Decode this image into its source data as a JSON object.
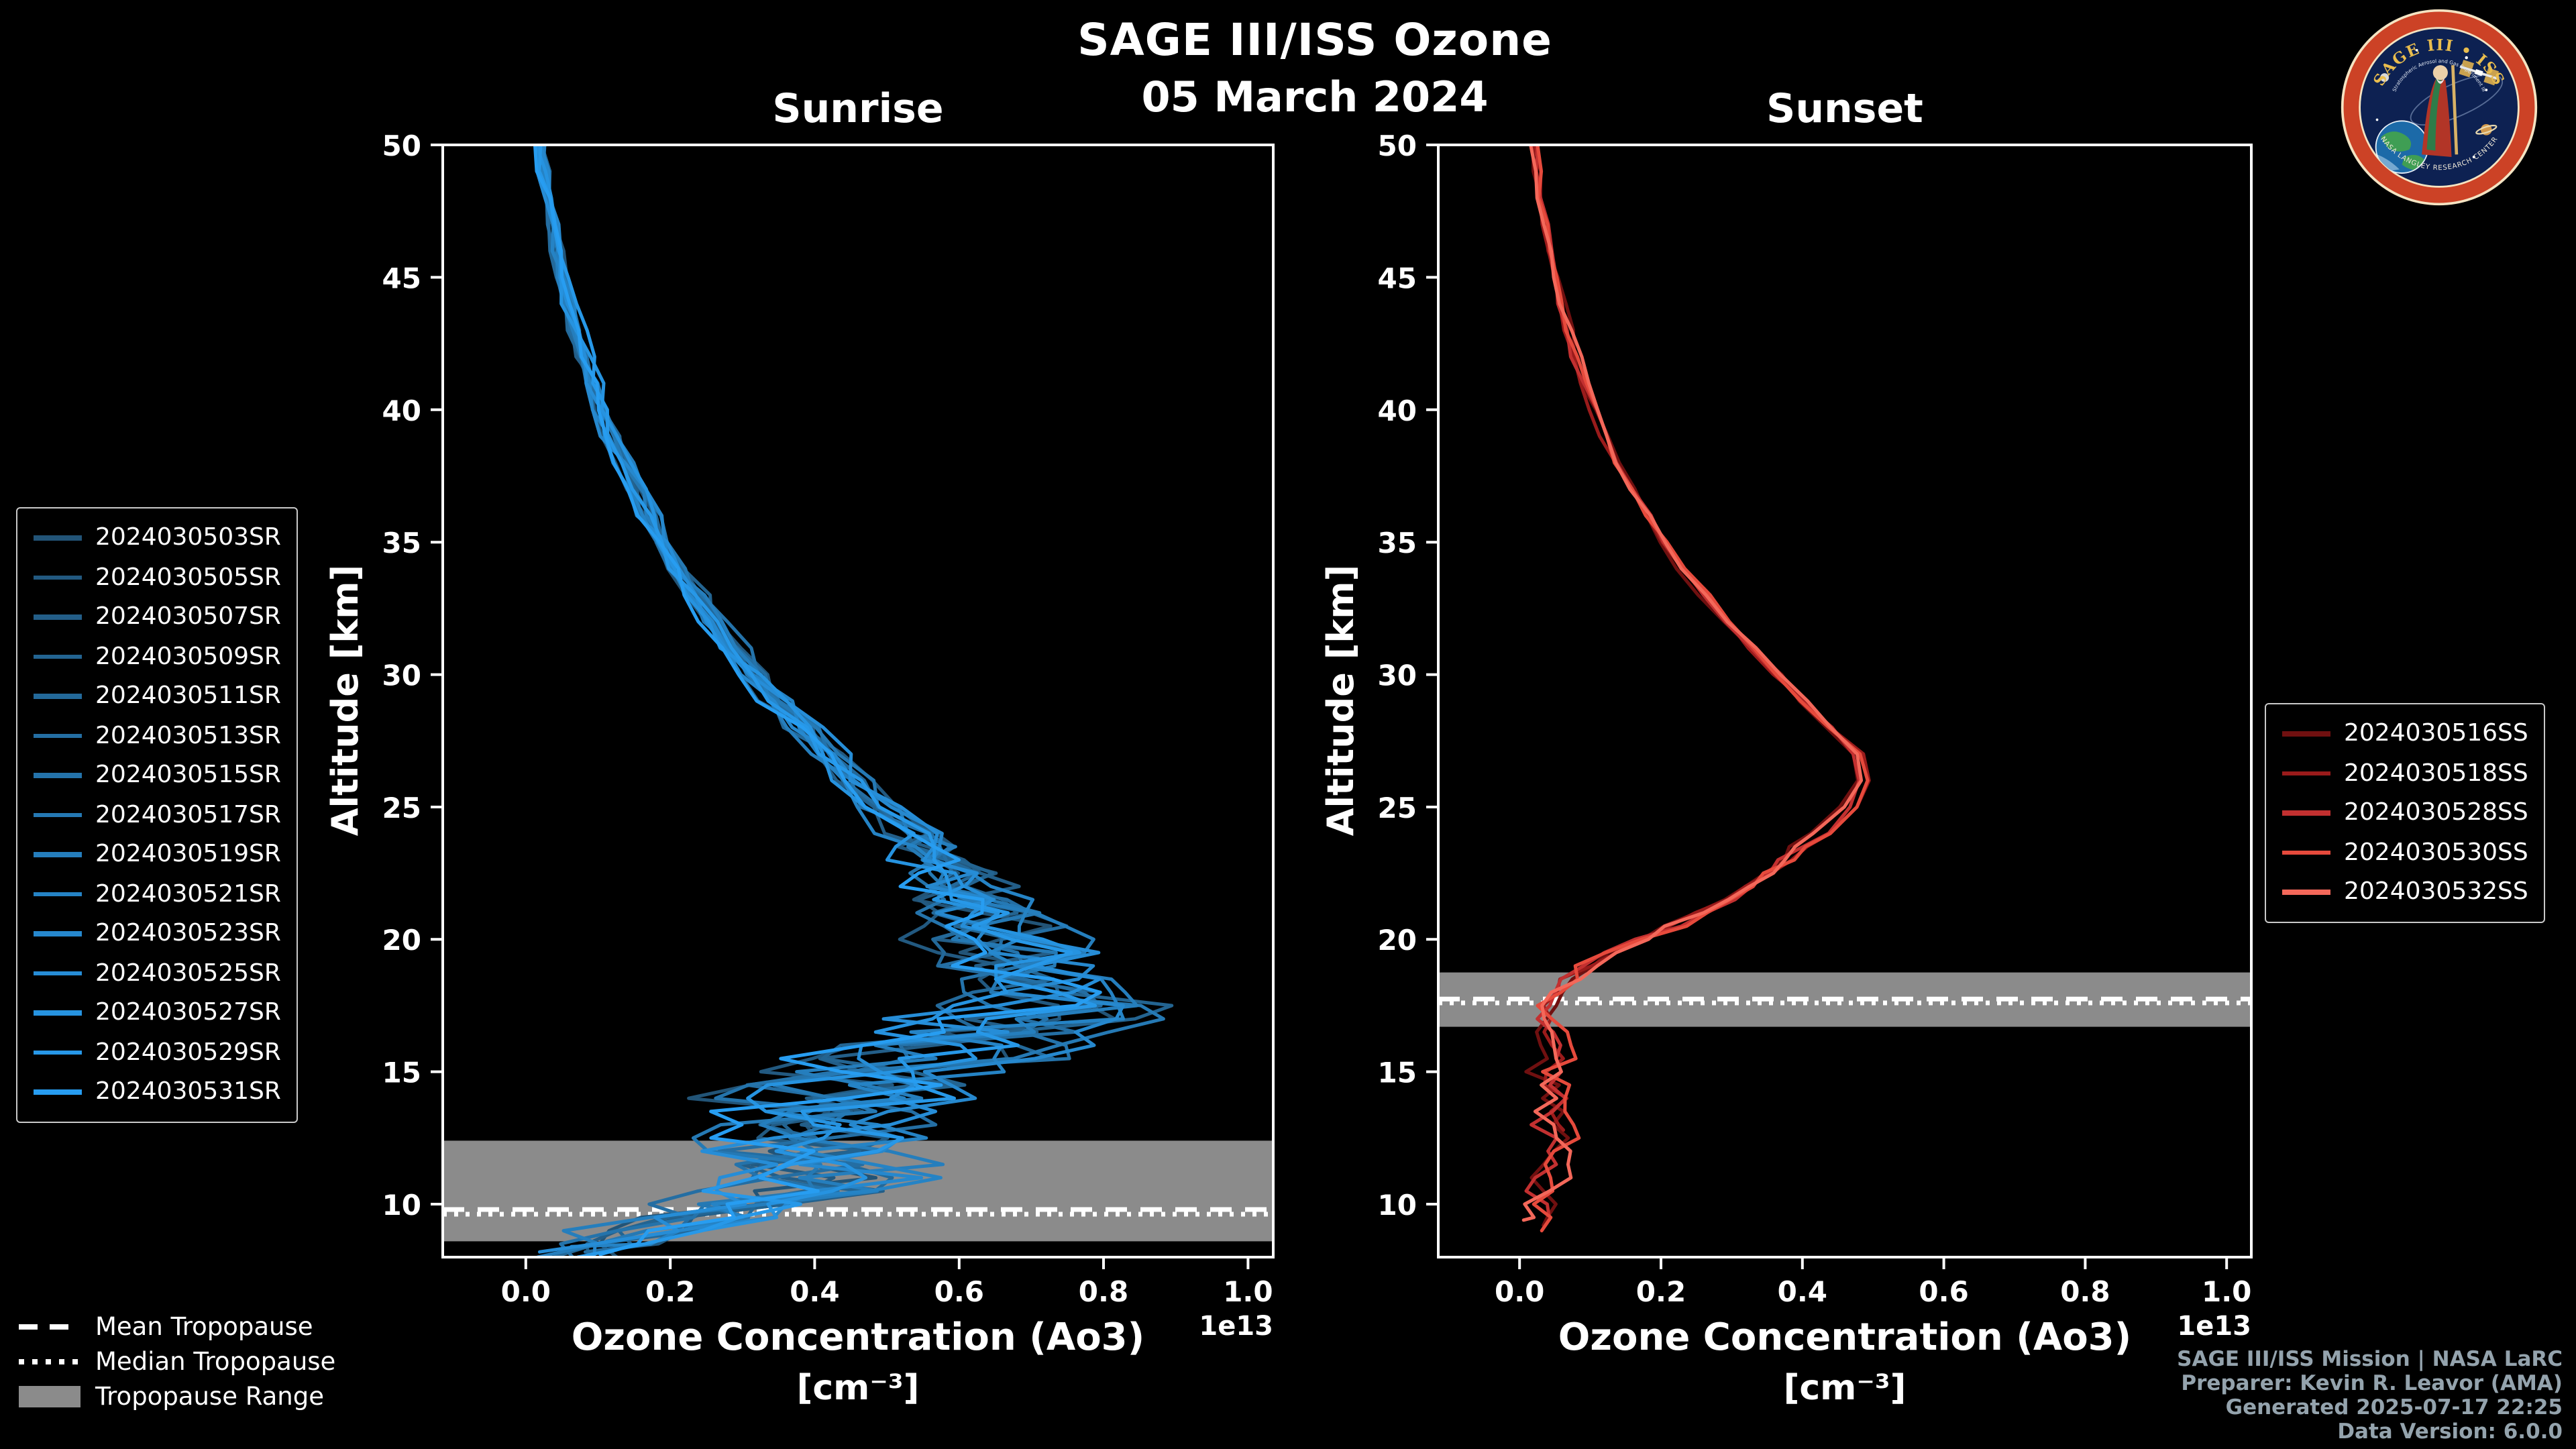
{
  "header": {
    "title": "SAGE III/ISS Ozone",
    "date": "05 March 2024"
  },
  "footer": {
    "lines": [
      "SAGE III/ISS Mission | NASA LaRC",
      "Preparer: Kevin R. Leavor (AMA)",
      "Generated 2025-07-17 22:25",
      "Data Version: 6.0.0"
    ],
    "color": "#94a3ad"
  },
  "logo": {
    "title_top": "SAGE III • ISS",
    "subtitle": "Stratospheric Aerosol and Gas Experiment III",
    "title_bottom": "NASA LANGLEY RESEARCH CENTER"
  },
  "tropopause_legend": {
    "mean_label": "Mean Tropopause",
    "median_label": "Median Tropopause",
    "range_label": "Tropopause Range",
    "range_color": "#8b8b8b"
  },
  "chart_data": {
    "type": "line",
    "title": "SAGE III/ISS Ozone",
    "subtitle": "05 March 2024",
    "x_multiplier_label": "1e13",
    "grid": false,
    "panels": [
      {
        "id": "sunrise",
        "title": "Sunrise",
        "xlabel": "Ozone Concentration (Ao3)",
        "xlabel_units": "[cm⁻³]",
        "ylabel": "Altitude [km]",
        "xlim": [
          -0.115,
          1.035
        ],
        "ylim": [
          8,
          50
        ],
        "xticks": [
          0.0,
          0.2,
          0.4,
          0.6,
          0.8,
          1.0
        ],
        "yticks": [
          10,
          15,
          20,
          25,
          30,
          35,
          40,
          45,
          50
        ],
        "x_unit_scale": "1e13 cm^-3",
        "tropopause": {
          "mean": 9.8,
          "median": 9.62,
          "range": [
            8.6,
            12.4
          ]
        },
        "base_profile": {
          "alt": [
            50,
            48,
            46,
            44,
            42,
            40,
            38,
            36,
            34,
            32,
            30,
            28,
            26,
            25,
            24,
            23,
            22,
            21,
            20,
            19,
            18,
            17.5,
            17,
            16.5,
            16,
            15,
            14,
            13,
            12,
            11,
            10.5,
            10,
            9.5,
            9,
            8.5,
            8
          ],
          "ozone": [
            0.02,
            0.03,
            0.045,
            0.06,
            0.08,
            0.105,
            0.135,
            0.17,
            0.21,
            0.26,
            0.32,
            0.385,
            0.455,
            0.49,
            0.53,
            0.565,
            0.6,
            0.63,
            0.655,
            0.69,
            0.73,
            0.76,
            0.7,
            0.63,
            0.57,
            0.48,
            0.42,
            0.38,
            0.4,
            0.43,
            0.4,
            0.33,
            0.25,
            0.16,
            0.1,
            0.07
          ]
        },
        "noise_amp": {
          "alt": [
            50,
            40,
            30,
            26,
            24,
            22,
            20,
            18,
            17,
            16,
            15,
            13,
            11,
            10,
            9,
            8
          ],
          "amp": [
            0.008,
            0.012,
            0.02,
            0.03,
            0.045,
            0.07,
            0.1,
            0.13,
            0.16,
            0.17,
            0.17,
            0.16,
            0.15,
            0.12,
            0.09,
            0.06
          ]
        },
        "series": [
          {
            "label": "2024030503SR",
            "color": "#225477",
            "seed": 11,
            "min_alt": 8.0
          },
          {
            "label": "2024030505SR",
            "color": "#225980",
            "seed": 47,
            "min_alt": 8.3
          },
          {
            "label": "2024030507SR",
            "color": "#235E88",
            "seed": 83,
            "min_alt": 8.0
          },
          {
            "label": "2024030509SR",
            "color": "#236491",
            "seed": 129,
            "min_alt": 8.5
          },
          {
            "label": "2024030511SR",
            "color": "#23699A",
            "seed": 175,
            "min_alt": 8.0
          },
          {
            "label": "2024030513SR",
            "color": "#246EA3",
            "seed": 221,
            "min_alt": 8.2
          },
          {
            "label": "2024030515SR",
            "color": "#2473AB",
            "seed": 267,
            "min_alt": 8.0
          },
          {
            "label": "2024030517SR",
            "color": "#2579B4",
            "seed": 313,
            "min_alt": 8.6
          },
          {
            "label": "2024030519SR",
            "color": "#257EBD",
            "seed": 359,
            "min_alt": 8.0
          },
          {
            "label": "2024030521SR",
            "color": "#2583C5",
            "seed": 405,
            "min_alt": 8.4
          },
          {
            "label": "2024030523SR",
            "color": "#2688CE",
            "seed": 451,
            "min_alt": 8.0
          },
          {
            "label": "2024030525SR",
            "color": "#268DD7",
            "seed": 497,
            "min_alt": 8.2
          },
          {
            "label": "2024030527SR",
            "color": "#2693E0",
            "seed": 543,
            "min_alt": 9.0
          },
          {
            "label": "2024030529SR",
            "color": "#2798E8",
            "seed": 589,
            "min_alt": 8.0
          },
          {
            "label": "2024030531SR",
            "color": "#279DF1",
            "seed": 635,
            "min_alt": 8.1
          }
        ]
      },
      {
        "id": "sunset",
        "title": "Sunset",
        "xlabel": "Ozone Concentration (Ao3)",
        "xlabel_units": "[cm⁻³]",
        "ylabel": "Altitude [km]",
        "xlim": [
          -0.115,
          1.035
        ],
        "ylim": [
          8,
          50
        ],
        "xticks": [
          0.0,
          0.2,
          0.4,
          0.6,
          0.8,
          1.0
        ],
        "yticks": [
          10,
          15,
          20,
          25,
          30,
          35,
          40,
          45,
          50
        ],
        "x_unit_scale": "1e13 cm^-3",
        "tropopause": {
          "mean": 17.75,
          "median": 17.6,
          "range": [
            16.7,
            18.75
          ]
        },
        "base_profile": {
          "alt": [
            50,
            48,
            46,
            44,
            42,
            40,
            38,
            36,
            34,
            32,
            30,
            29,
            28,
            27.5,
            27,
            26.5,
            26,
            25,
            24,
            23,
            22,
            21,
            20,
            19.5,
            19,
            18.5,
            18,
            17.5,
            17,
            16,
            15,
            14,
            13,
            12,
            11,
            10,
            9
          ],
          "ozone": [
            0.02,
            0.03,
            0.045,
            0.06,
            0.08,
            0.105,
            0.14,
            0.18,
            0.23,
            0.295,
            0.365,
            0.4,
            0.44,
            0.465,
            0.48,
            0.495,
            0.49,
            0.465,
            0.425,
            0.375,
            0.32,
            0.255,
            0.175,
            0.135,
            0.1,
            0.075,
            0.055,
            0.045,
            0.04,
            0.05,
            0.04,
            0.05,
            0.04,
            0.05,
            0.035,
            0.03,
            0.04
          ]
        },
        "noise_amp": {
          "alt": [
            50,
            30,
            25,
            22,
            20,
            18,
            15,
            12,
            9
          ],
          "amp": [
            0.006,
            0.008,
            0.012,
            0.015,
            0.02,
            0.025,
            0.03,
            0.035,
            0.03
          ]
        },
        "series": [
          {
            "label": "2024030516SS",
            "color": "#701010",
            "seed": 77,
            "min_alt": 9.2
          },
          {
            "label": "2024030518SS",
            "color": "#9A1B1B",
            "seed": 154,
            "min_alt": 12.8
          },
          {
            "label": "2024030528SS",
            "color": "#C23030",
            "seed": 231,
            "min_alt": 9.6
          },
          {
            "label": "2024030530SS",
            "color": "#E64A3C",
            "seed": 308,
            "min_alt": 9.0
          },
          {
            "label": "2024030532SS",
            "color": "#F4685A",
            "seed": 385,
            "min_alt": 9.4
          }
        ]
      }
    ]
  }
}
